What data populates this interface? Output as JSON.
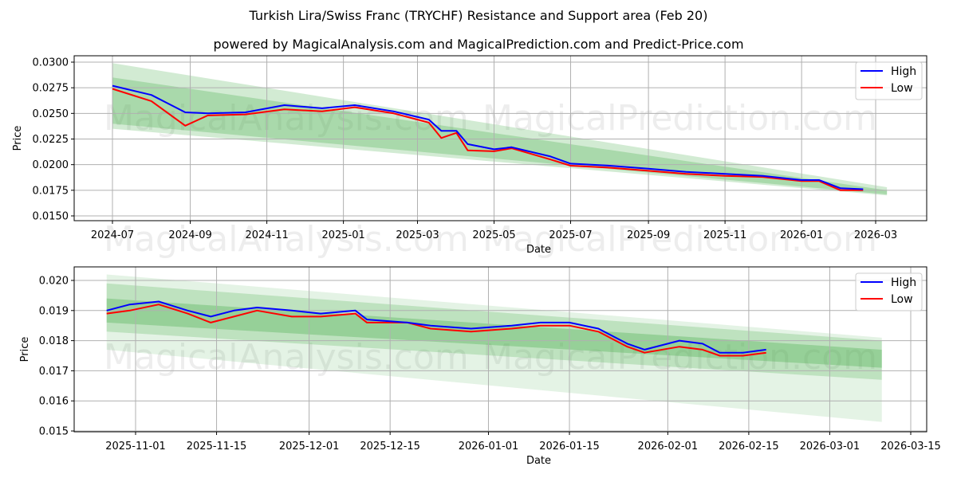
{
  "header": {
    "title": "Turkish Lira/Swiss Franc (TRYCHF) Resistance and Support area (Feb 20)",
    "subtitle": "powered by MagicalAnalysis.com and MagicalPrediction.com and Predict-Price.com"
  },
  "watermarks": [
    "MagicalAnalysis.com",
    "MagicalPrediction.com"
  ],
  "colors": {
    "high": "#0000ff",
    "low": "#ff0000",
    "band": "#4caf50"
  },
  "legend": {
    "high": "High",
    "low": "Low"
  },
  "chart_data": [
    {
      "type": "line",
      "title": "Turkish Lira/Swiss Franc (TRYCHF) Resistance and Support area (Feb 20)",
      "xlabel": "Date",
      "ylabel": "Price",
      "ylim": [
        0.0145,
        0.0305
      ],
      "yticks": [
        "0.0150",
        "0.0175",
        "0.0200",
        "0.0225",
        "0.0250",
        "0.0275",
        "0.0300"
      ],
      "xticks": [
        "2024-07",
        "2024-09",
        "2024-11",
        "2025-01",
        "2025-03",
        "2025-05",
        "2025-07",
        "2025-09",
        "2025-11",
        "2026-01",
        "2026-03"
      ],
      "grid": true,
      "legend_position": "upper right",
      "x": [
        "2024-07-01",
        "2024-08-01",
        "2024-08-28",
        "2024-09-15",
        "2024-10-15",
        "2024-11-15",
        "2024-12-15",
        "2025-01-10",
        "2025-02-10",
        "2025-03-10",
        "2025-03-20",
        "2025-04-01",
        "2025-04-10",
        "2025-05-01",
        "2025-05-15",
        "2025-06-15",
        "2025-07-01",
        "2025-08-01",
        "2025-09-01",
        "2025-10-01",
        "2025-11-01",
        "2025-12-01",
        "2026-01-01",
        "2026-01-15",
        "2026-02-01",
        "2026-02-19"
      ],
      "series": [
        {
          "name": "High",
          "values": [
            0.0277,
            0.0268,
            0.0251,
            0.025,
            0.0251,
            0.0258,
            0.0255,
            0.0258,
            0.0252,
            0.0244,
            0.0233,
            0.0233,
            0.022,
            0.0215,
            0.0217,
            0.0208,
            0.0201,
            0.0199,
            0.0196,
            0.0193,
            0.0191,
            0.0189,
            0.0185,
            0.0185,
            0.0177,
            0.0176
          ]
        },
        {
          "name": "Low",
          "values": [
            0.0274,
            0.0262,
            0.0238,
            0.0248,
            0.0249,
            0.0254,
            0.0252,
            0.0256,
            0.025,
            0.0241,
            0.0226,
            0.0231,
            0.0214,
            0.0213,
            0.0216,
            0.0205,
            0.0199,
            0.0197,
            0.0194,
            0.0191,
            0.0189,
            0.0188,
            0.0184,
            0.0184,
            0.0175,
            0.0175
          ]
        }
      ],
      "bands": [
        {
          "name": "outer",
          "start": "2024-07-01",
          "end": "2026-03-10",
          "upper": [
            0.0299,
            0.0178
          ],
          "lower": [
            0.0235,
            0.017
          ]
        },
        {
          "name": "inner",
          "start": "2024-07-01",
          "end": "2026-03-10",
          "upper": [
            0.0285,
            0.0175
          ],
          "lower": [
            0.024,
            0.0171
          ]
        }
      ]
    },
    {
      "type": "line",
      "xlabel": "Date",
      "ylabel": "Price",
      "ylim": [
        0.0149,
        0.0205
      ],
      "yticks": [
        "0.015",
        "0.016",
        "0.017",
        "0.018",
        "0.019",
        "0.020"
      ],
      "xticks": [
        "2025-11-01",
        "2025-11-15",
        "2025-12-01",
        "2025-12-15",
        "2026-01-01",
        "2026-01-15",
        "2026-02-01",
        "2026-02-15",
        "2026-03-01",
        "2026-03-15"
      ],
      "grid": true,
      "legend_position": "upper right",
      "x": [
        "2025-10-27",
        "2025-10-31",
        "2025-11-05",
        "2025-11-10",
        "2025-11-14",
        "2025-11-18",
        "2025-11-22",
        "2025-11-28",
        "2025-12-03",
        "2025-12-09",
        "2025-12-11",
        "2025-12-18",
        "2025-12-22",
        "2025-12-29",
        "2026-01-05",
        "2026-01-10",
        "2026-01-15",
        "2026-01-20",
        "2026-01-25",
        "2026-01-28",
        "2026-02-03",
        "2026-02-07",
        "2026-02-10",
        "2026-02-14",
        "2026-02-18"
      ],
      "series": [
        {
          "name": "High",
          "values": [
            0.019,
            0.0192,
            0.0193,
            0.019,
            0.0188,
            0.019,
            0.0191,
            0.019,
            0.0189,
            0.019,
            0.0187,
            0.0186,
            0.0185,
            0.0184,
            0.0185,
            0.0186,
            0.0186,
            0.0184,
            0.0179,
            0.0177,
            0.018,
            0.0179,
            0.0176,
            0.0176,
            0.0177
          ]
        },
        {
          "name": "Low",
          "values": [
            0.0189,
            0.019,
            0.0192,
            0.0189,
            0.0186,
            0.0188,
            0.019,
            0.0188,
            0.0188,
            0.0189,
            0.0186,
            0.0186,
            0.0184,
            0.0183,
            0.0184,
            0.0185,
            0.0185,
            0.0183,
            0.0178,
            0.0176,
            0.0178,
            0.0177,
            0.0175,
            0.0175,
            0.0176
          ]
        }
      ],
      "bands": [
        {
          "name": "outer-light",
          "start": "2025-10-27",
          "end": "2026-03-10",
          "upper": [
            0.0202,
            0.0181
          ],
          "lower": [
            0.0177,
            0.0153
          ]
        },
        {
          "name": "mid",
          "start": "2025-10-27",
          "end": "2026-03-10",
          "upper": [
            0.0199,
            0.018
          ],
          "lower": [
            0.0183,
            0.0167
          ]
        },
        {
          "name": "core",
          "start": "2025-10-27",
          "end": "2026-03-10",
          "upper": [
            0.0194,
            0.0177
          ],
          "lower": [
            0.0186,
            0.0171
          ]
        }
      ]
    }
  ]
}
